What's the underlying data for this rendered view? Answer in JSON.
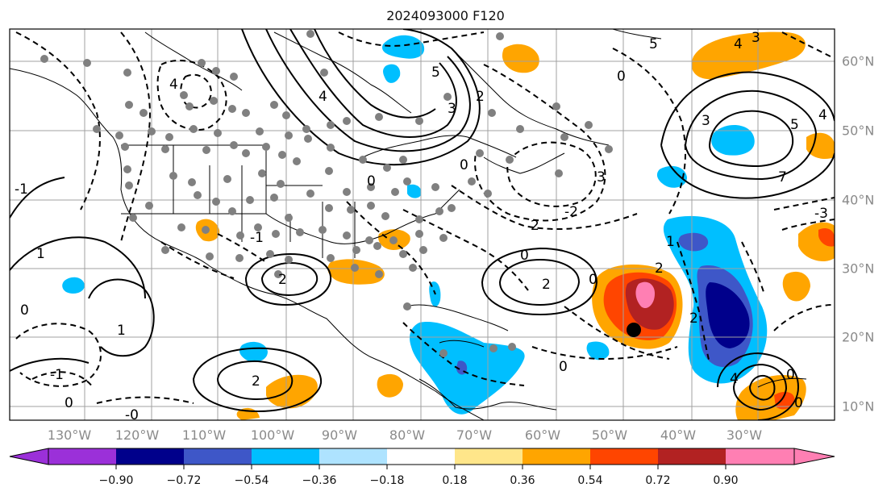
{
  "title": "2024093000 F120",
  "map": {
    "lon_labels": [
      "130°W",
      "120°W",
      "110°W",
      "100°W",
      "90°W",
      "80°W",
      "70°W",
      "60°W",
      "50°W",
      "40°W",
      "30°W"
    ],
    "lat_labels": [
      "60°N",
      "50°N",
      "40°N",
      "30°N",
      "20°N",
      "10°N"
    ],
    "contour_labels_visible": [
      "0",
      "1",
      "2",
      "3",
      "4",
      "5",
      "-1",
      "-2",
      "-3"
    ]
  },
  "colorbar": {
    "ticks": [
      "−0.90",
      "−0.72",
      "−0.54",
      "−0.36",
      "−0.18",
      "0.18",
      "0.36",
      "0.54",
      "0.72",
      "0.90"
    ],
    "colors": [
      "#9b30d9",
      "#00008b",
      "#3e57c8",
      "#00bfff",
      "#aee3ff",
      "#ffffff",
      "#ffe68a",
      "#ffa500",
      "#ff4500",
      "#b22222",
      "#ff7fb3"
    ]
  },
  "colors": {
    "grid": "#a0a0a0",
    "coast": "#000000",
    "station": "#808080",
    "marker": "#000000"
  }
}
